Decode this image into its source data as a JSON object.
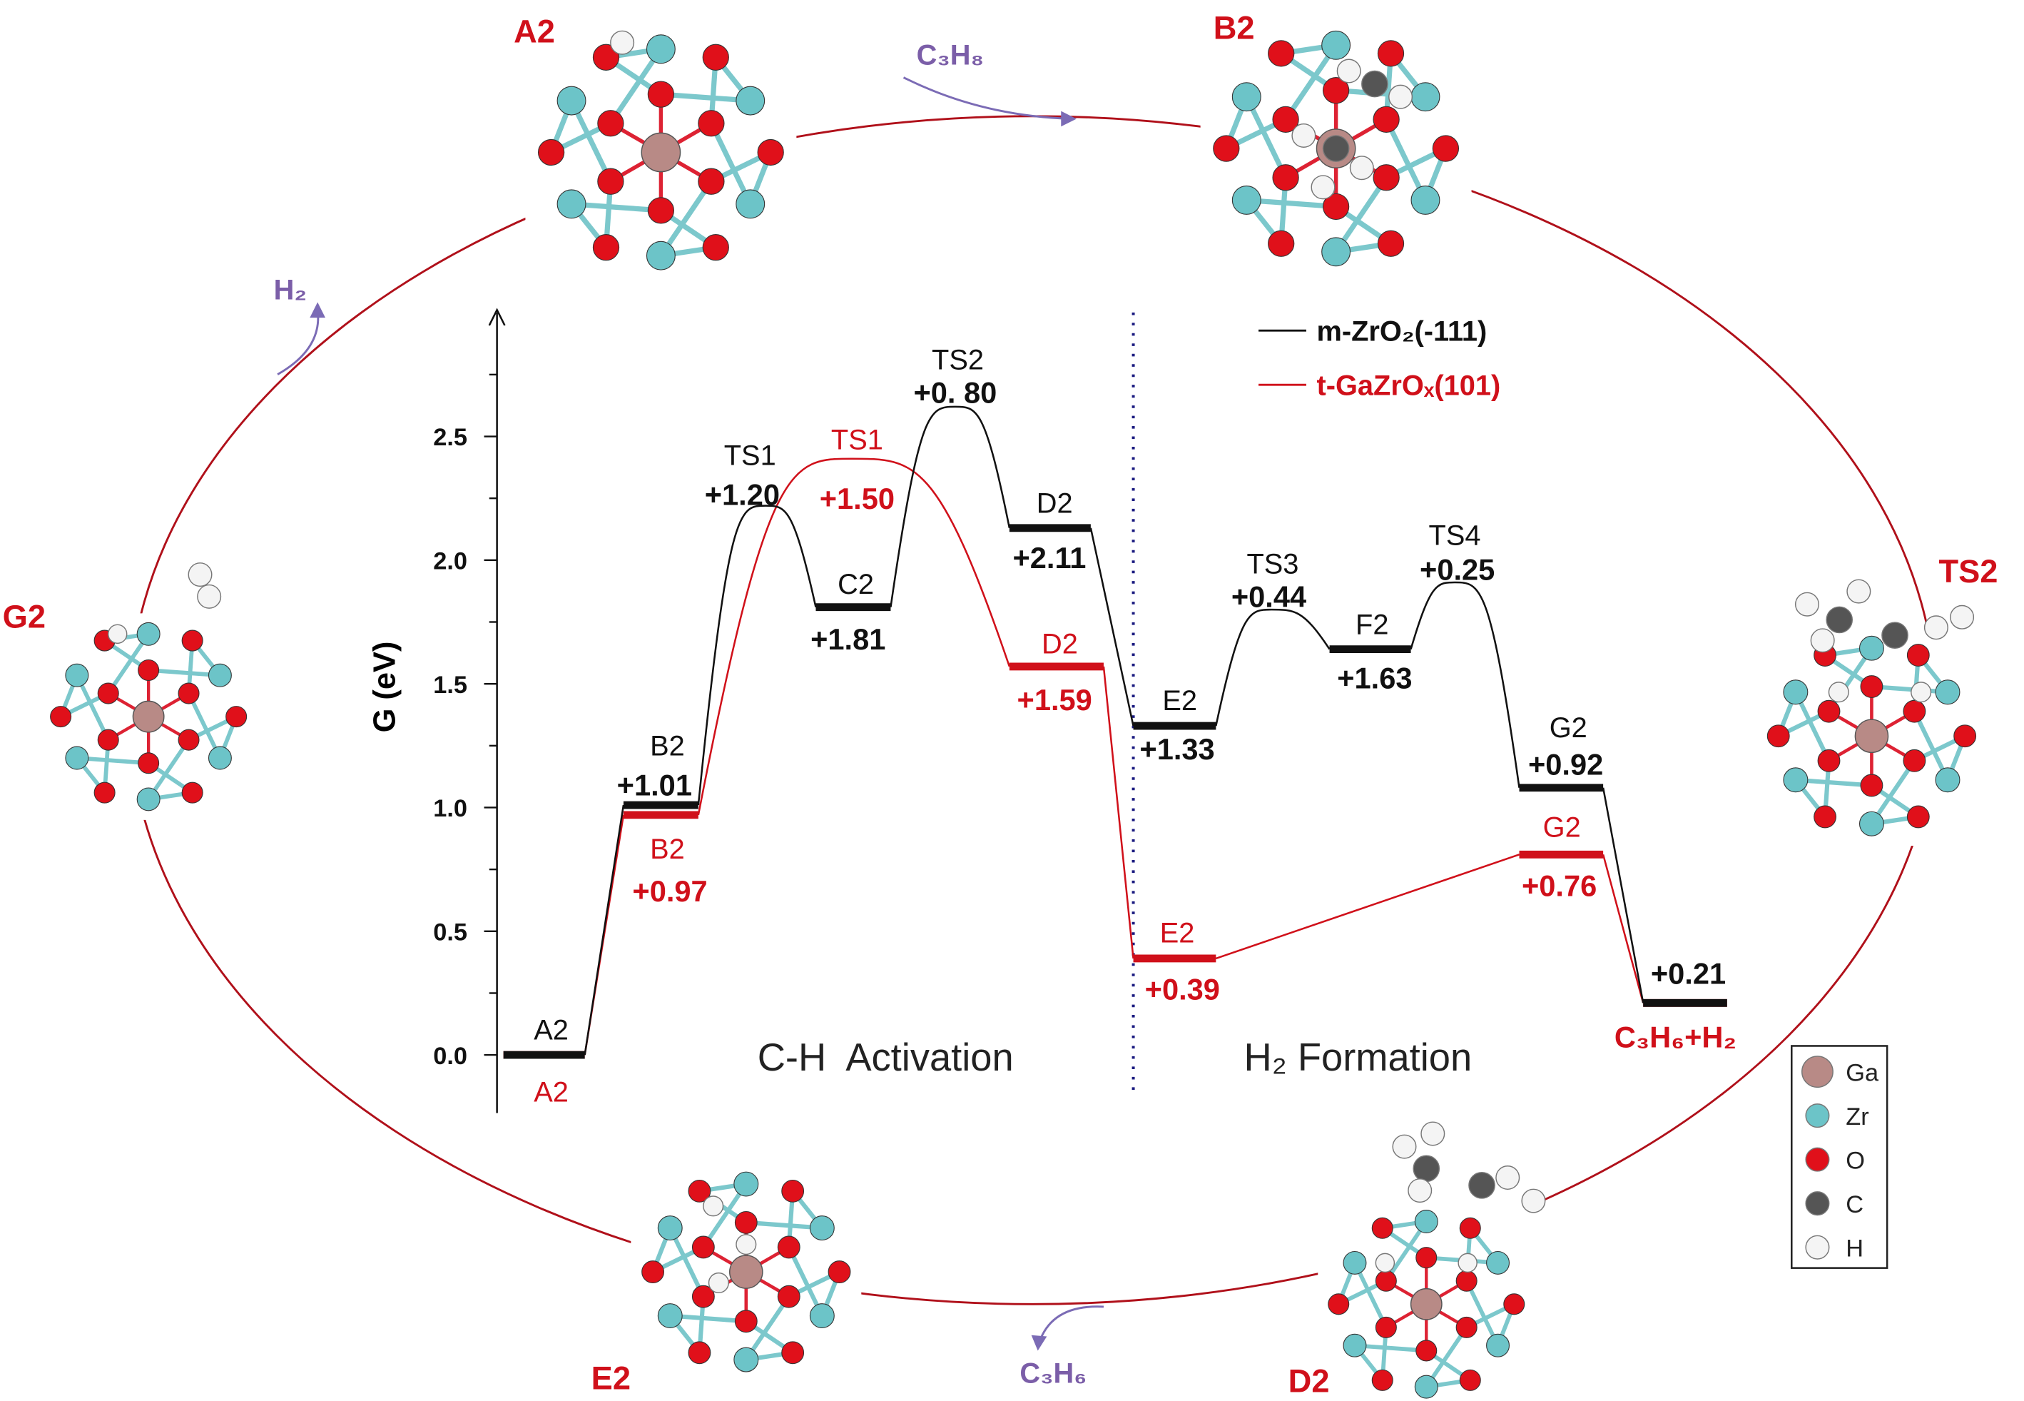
{
  "chart_data": {
    "type": "line",
    "ylabel": "G (eV)",
    "ylim": [
      -0.25,
      2.85
    ],
    "yticks": [
      "0.0",
      "0.5",
      "1.0",
      "1.5",
      "2.0",
      "2.5"
    ],
    "categories": [
      "A2",
      "B2",
      "TS1",
      "C2",
      "TS2",
      "D2",
      "E2",
      "TS3",
      "F2",
      "TS4",
      "G2",
      "C3H6+H2"
    ],
    "sections": [
      "C-H  Activation",
      "H₂ Formation"
    ],
    "legend_placement": "top-right",
    "series": [
      {
        "name": "m-ZrO₂(-111)",
        "color": "#111111",
        "values": [
          0.0,
          1.01,
          2.22,
          1.81,
          2.62,
          2.13,
          1.33,
          1.8,
          1.64,
          1.91,
          1.08,
          0.21
        ],
        "names": [
          "A2",
          "B2",
          "TS1",
          "C2",
          "TS2",
          "D2",
          "E2",
          "TS3",
          "F2",
          "TS4",
          "G2",
          ""
        ],
        "labels": [
          "",
          "+1.01",
          "+1.20",
          "+1.81",
          "+0. 80",
          "+2.11",
          "+1.33",
          "+0.44",
          "+1.63",
          "+0.25",
          "+0.92",
          "+0.21"
        ]
      },
      {
        "name": "t-GaZrOₓ(101)",
        "color": "#d0101a",
        "values": [
          0.0,
          0.97,
          2.41,
          null,
          null,
          1.57,
          0.39,
          null,
          null,
          null,
          0.81,
          0.21
        ],
        "names": [
          "A2",
          "B2",
          "TS1",
          "",
          "",
          "D2",
          "E2",
          "",
          "",
          "",
          "G2",
          "C₃H₆+H₂"
        ],
        "labels": [
          "",
          "+0.97",
          "+1.50",
          "",
          "",
          "+1.59",
          "+0.39",
          "",
          "",
          "",
          "+0.76",
          ""
        ]
      }
    ]
  },
  "cycle": {
    "structures": [
      "A2",
      "B2",
      "TS2",
      "D2",
      "E2",
      "G2"
    ],
    "molecules": {
      "in": "C₃H₈",
      "out_propene": "C₃H₆",
      "out_h2": "H₂"
    },
    "line_color": "#b0101a",
    "arrow_color": "#7b6bb5"
  },
  "atom_key": [
    {
      "label": "Ga",
      "color": "#b88a86"
    },
    {
      "label": "Zr",
      "color": "#6cc4c8"
    },
    {
      "label": "O",
      "color": "#e0101a"
    },
    {
      "label": "C",
      "color": "#555555"
    },
    {
      "label": "H",
      "color": "#f4f4f4"
    }
  ]
}
